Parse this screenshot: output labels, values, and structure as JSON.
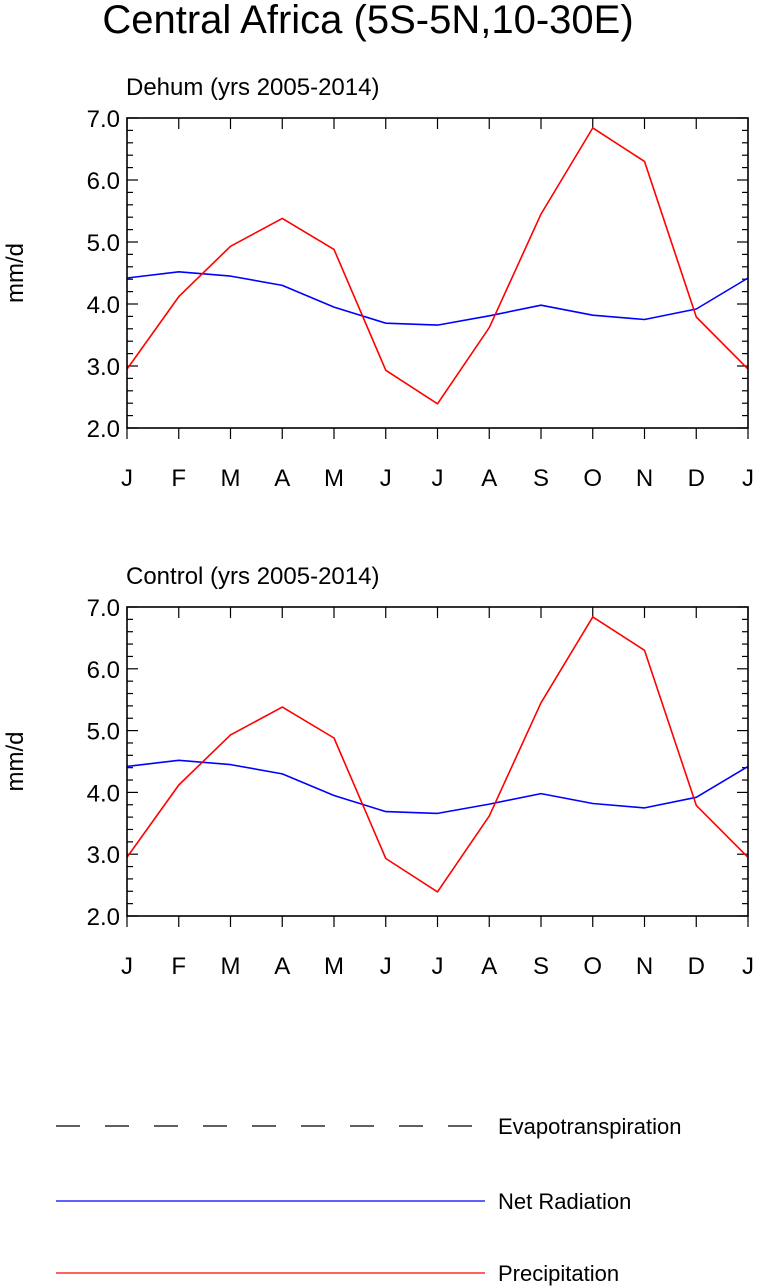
{
  "title": "Central Africa (5S-5N,10-30E)",
  "months": [
    "J",
    "F",
    "M",
    "A",
    "M",
    "J",
    "J",
    "A",
    "S",
    "O",
    "N",
    "D",
    "J"
  ],
  "yticks": [
    "2.0",
    "3.0",
    "4.0",
    "5.0",
    "6.0",
    "7.0"
  ],
  "legend": {
    "items": [
      {
        "name": "Evapotranspiration",
        "color": "#000000",
        "style": "dashed"
      },
      {
        "name": "Net Radiation",
        "color": "#0000ff",
        "style": "solid"
      },
      {
        "name": "Precipitation",
        "color": "#ff0000",
        "style": "solid"
      }
    ]
  },
  "chart_data": [
    {
      "type": "line",
      "subtitle": "Dehum (yrs 2005-2014)",
      "ylabel": "mm/d",
      "ylim": [
        2.0,
        7.0
      ],
      "categories": [
        "J",
        "F",
        "M",
        "A",
        "M",
        "J",
        "J",
        "A",
        "S",
        "O",
        "N",
        "D",
        "J"
      ],
      "series": [
        {
          "name": "Net Radiation",
          "color": "#0000ff",
          "values": [
            4.42,
            4.52,
            4.45,
            4.3,
            3.95,
            3.69,
            3.66,
            3.81,
            3.98,
            3.82,
            3.75,
            3.92,
            4.42
          ]
        },
        {
          "name": "Precipitation",
          "color": "#ff0000",
          "values": [
            2.95,
            4.12,
            4.93,
            5.38,
            4.88,
            2.93,
            2.39,
            3.62,
            5.45,
            6.84,
            6.3,
            3.79,
            2.95
          ]
        }
      ]
    },
    {
      "type": "line",
      "subtitle": "Control (yrs 2005-2014)",
      "ylabel": "mm/d",
      "ylim": [
        2.0,
        7.0
      ],
      "categories": [
        "J",
        "F",
        "M",
        "A",
        "M",
        "J",
        "J",
        "A",
        "S",
        "O",
        "N",
        "D",
        "J"
      ],
      "series": [
        {
          "name": "Net Radiation",
          "color": "#0000ff",
          "values": [
            4.42,
            4.52,
            4.45,
            4.3,
            3.95,
            3.69,
            3.66,
            3.81,
            3.98,
            3.82,
            3.75,
            3.92,
            4.42
          ]
        },
        {
          "name": "Precipitation",
          "color": "#ff0000",
          "values": [
            2.95,
            4.12,
            4.93,
            5.38,
            4.88,
            2.93,
            2.39,
            3.62,
            5.45,
            6.84,
            6.3,
            3.79,
            2.95
          ]
        }
      ]
    }
  ]
}
